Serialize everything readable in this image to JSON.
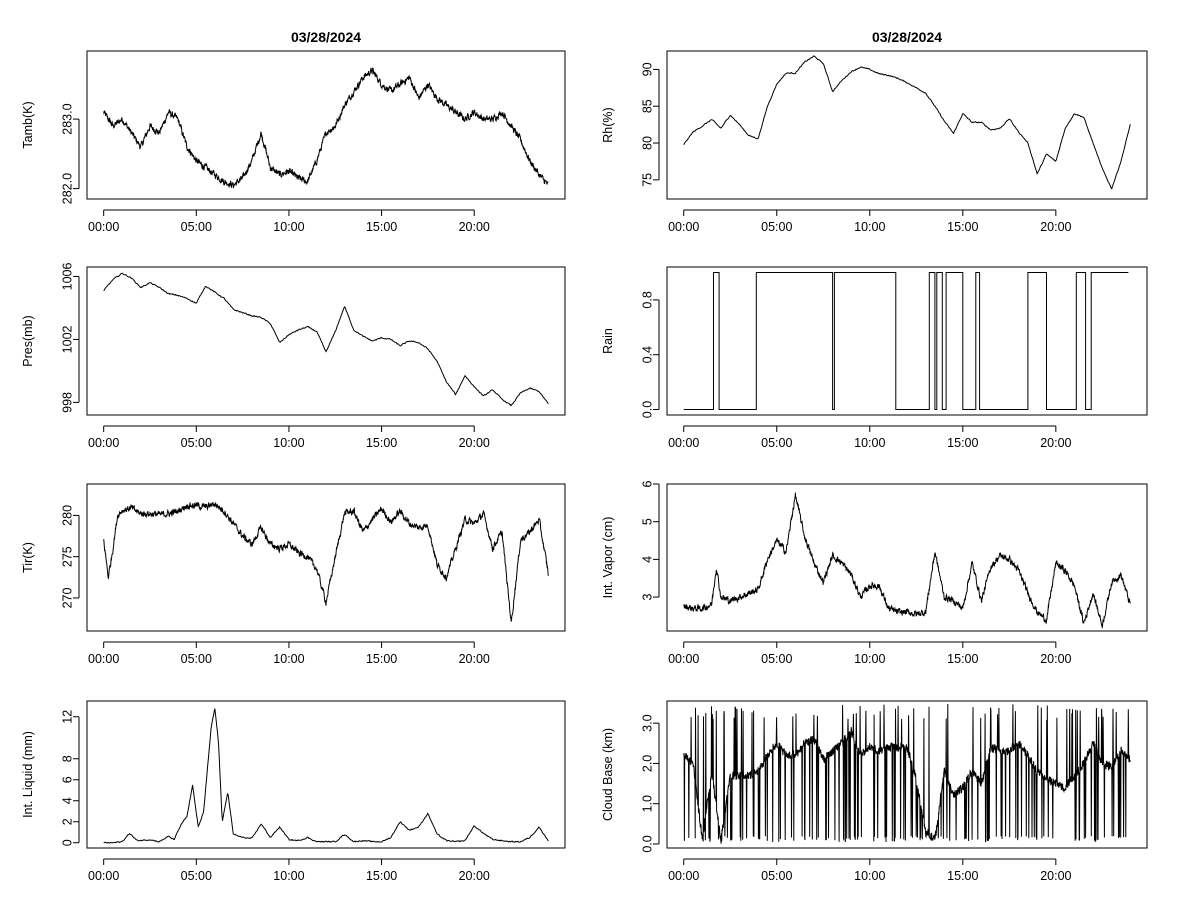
{
  "colors": {
    "background": "#ffffff",
    "line": "#000000",
    "axis": "#000000"
  },
  "figure": {
    "layout": "4 rows x 2 columns of time-series panels"
  },
  "chart_data": [
    {
      "type": "line",
      "title": "03/28/2024",
      "xlabel": "",
      "ylabel": "Tamb(K)",
      "xlim": [
        0,
        24
      ],
      "ylim": [
        281.85,
        283.98
      ],
      "x_ticks": [
        0,
        5,
        10,
        15,
        20
      ],
      "x_tick_labels": [
        "00:00",
        "05:00",
        "10:00",
        "15:00",
        "20:00"
      ],
      "y_ticks": [
        282.0,
        283.0
      ],
      "y_tick_labels": [
        "282.0",
        "283.0"
      ],
      "grid": false,
      "legend": "none",
      "series": [
        {
          "style": "noisy",
          "x": [
            0,
            0.5,
            1,
            1.5,
            2,
            2.5,
            3,
            3.5,
            4,
            4.5,
            5,
            5.5,
            6,
            6.5,
            7,
            7.5,
            8,
            8.5,
            9,
            9.5,
            10,
            10.5,
            11,
            11.5,
            12,
            12.5,
            13,
            13.5,
            14,
            14.5,
            15,
            15.5,
            16,
            16.5,
            17,
            17.5,
            18,
            18.5,
            19,
            19.5,
            20,
            20.5,
            21,
            21.5,
            22,
            22.5,
            23,
            23.5,
            24
          ],
          "y": [
            283.1,
            282.9,
            283.0,
            282.8,
            282.6,
            282.9,
            282.8,
            283.1,
            283.0,
            282.6,
            282.4,
            282.3,
            282.2,
            282.1,
            282.05,
            282.15,
            282.4,
            282.8,
            282.3,
            282.2,
            282.25,
            282.15,
            282.1,
            282.4,
            282.8,
            282.9,
            283.2,
            283.4,
            283.6,
            283.7,
            283.5,
            283.4,
            283.5,
            283.6,
            283.3,
            283.5,
            283.3,
            283.2,
            283.1,
            283.0,
            283.1,
            283.0,
            283.0,
            283.1,
            282.9,
            282.7,
            282.4,
            282.2,
            282.05
          ]
        }
      ]
    },
    {
      "type": "line",
      "title": "03/28/2024",
      "xlabel": "",
      "ylabel": "Rh(%)",
      "xlim": [
        0,
        24
      ],
      "ylim": [
        72.4,
        92.5
      ],
      "x_ticks": [
        0,
        5,
        10,
        15,
        20
      ],
      "x_tick_labels": [
        "00:00",
        "05:00",
        "10:00",
        "15:00",
        "20:00"
      ],
      "y_ticks": [
        75,
        80,
        85,
        90
      ],
      "y_tick_labels": [
        "75",
        "80",
        "85",
        "90"
      ],
      "grid": false,
      "legend": "none",
      "series": [
        {
          "style": "smooth",
          "x": [
            0,
            0.5,
            1,
            1.5,
            2,
            2.5,
            3,
            3.5,
            4,
            4.5,
            5,
            5.5,
            6,
            6.5,
            7,
            7.5,
            8,
            8.5,
            9,
            9.5,
            10,
            10.5,
            11,
            11.5,
            12,
            12.5,
            13,
            13.5,
            14,
            14.5,
            15,
            15.5,
            16,
            16.5,
            17,
            17.5,
            18,
            18.5,
            19,
            19.5,
            20,
            20.5,
            21,
            21.5,
            22,
            22.5,
            23,
            23.5,
            24
          ],
          "y": [
            79.8,
            81.5,
            82.3,
            83.2,
            82.0,
            83.8,
            82.5,
            81.0,
            80.6,
            85.0,
            88.0,
            89.5,
            89.5,
            91.0,
            91.8,
            90.8,
            87.0,
            88.5,
            89.7,
            90.3,
            90.0,
            89.4,
            89.2,
            88.8,
            88.2,
            87.5,
            86.8,
            85.0,
            83.0,
            81.3,
            84.0,
            82.8,
            82.8,
            81.8,
            82.0,
            83.3,
            81.5,
            80.0,
            75.8,
            78.5,
            77.5,
            82.0,
            84.0,
            83.5,
            80.0,
            76.5,
            73.8,
            77.5,
            82.5
          ]
        }
      ]
    },
    {
      "type": "line",
      "title": "",
      "xlabel": "",
      "ylabel": "Pres(mb)",
      "xlim": [
        0,
        24
      ],
      "ylim": [
        997.2,
        1006.6
      ],
      "x_ticks": [
        0,
        5,
        10,
        15,
        20
      ],
      "x_tick_labels": [
        "00:00",
        "05:00",
        "10:00",
        "15:00",
        "20:00"
      ],
      "y_ticks": [
        998,
        1002,
        1006
      ],
      "y_tick_labels": [
        "998",
        "1002",
        "1006"
      ],
      "grid": false,
      "legend": "none",
      "series": [
        {
          "style": "smooth",
          "x": [
            0,
            0.5,
            1,
            1.5,
            2,
            2.5,
            3,
            3.5,
            4,
            4.5,
            5,
            5.5,
            6,
            6.5,
            7,
            7.5,
            8,
            8.5,
            9,
            9.5,
            10,
            10.5,
            11,
            11.5,
            12,
            12.5,
            13,
            13.5,
            14,
            14.5,
            15,
            15.5,
            16,
            16.5,
            17,
            17.5,
            18,
            18.5,
            19,
            19.5,
            20,
            20.5,
            21,
            21.5,
            22,
            22.5,
            23,
            23.5,
            24
          ],
          "y": [
            1005.1,
            1005.8,
            1006.2,
            1005.9,
            1005.3,
            1005.6,
            1005.3,
            1004.9,
            1004.8,
            1004.6,
            1004.3,
            1005.4,
            1005.0,
            1004.6,
            1003.9,
            1003.7,
            1003.5,
            1003.4,
            1003.0,
            1001.8,
            1002.3,
            1002.6,
            1002.8,
            1002.5,
            1001.2,
            1002.5,
            1004.1,
            1002.6,
            1002.2,
            1001.9,
            1002.1,
            1002.0,
            1001.6,
            1001.9,
            1001.8,
            1001.4,
            1000.6,
            999.3,
            998.5,
            999.7,
            999.0,
            998.4,
            998.8,
            998.2,
            997.8,
            998.6,
            998.9,
            998.7,
            997.9
          ]
        }
      ]
    },
    {
      "type": "line",
      "title": "",
      "xlabel": "",
      "ylabel": "Rain",
      "xlim": [
        0,
        24
      ],
      "ylim": [
        -0.04,
        1.04
      ],
      "x_ticks": [
        0,
        5,
        10,
        15,
        20
      ],
      "x_tick_labels": [
        "00:00",
        "05:00",
        "10:00",
        "15:00",
        "20:00"
      ],
      "y_ticks": [
        0.0,
        0.4,
        0.8
      ],
      "y_tick_labels": [
        "0.0",
        "0.4",
        "0.8"
      ],
      "grid": false,
      "legend": "none",
      "series": [
        {
          "style": "step",
          "x": [
            0,
            1.6,
            1.6,
            1.9,
            1.9,
            3.9,
            3.9,
            8.0,
            8.0,
            8.1,
            8.1,
            11.4,
            11.4,
            13.2,
            13.2,
            13.5,
            13.5,
            13.6,
            13.6,
            13.9,
            13.9,
            14.1,
            14.1,
            15.0,
            15.0,
            15.7,
            15.7,
            15.9,
            15.9,
            18.5,
            18.5,
            19.5,
            19.5,
            21.1,
            21.1,
            21.6,
            21.6,
            21.9,
            21.9,
            22.6,
            22.6,
            23.9
          ],
          "y": [
            0,
            0,
            1,
            1,
            0,
            0,
            1,
            1,
            0,
            0,
            1,
            1,
            0,
            0,
            1,
            1,
            0,
            0,
            1,
            1,
            0,
            0,
            1,
            1,
            0,
            0,
            1,
            1,
            0,
            0,
            1,
            1,
            0,
            0,
            1,
            1,
            0,
            0,
            1,
            1,
            1,
            1
          ]
        }
      ]
    },
    {
      "type": "line",
      "title": "",
      "xlabel": "",
      "ylabel": "Tir(K)",
      "xlim": [
        0,
        24
      ],
      "ylim": [
        266,
        283.8
      ],
      "x_ticks": [
        0,
        5,
        10,
        15,
        20
      ],
      "x_tick_labels": [
        "00:00",
        "05:00",
        "10:00",
        "15:00",
        "20:00"
      ],
      "y_ticks": [
        270,
        275,
        280
      ],
      "y_tick_labels": [
        "270",
        "275",
        "280"
      ],
      "grid": false,
      "legend": "none",
      "series": [
        {
          "style": "noisy",
          "x": [
            0,
            0.25,
            0.5,
            0.75,
            1,
            1.5,
            2,
            2.5,
            3,
            3.5,
            4,
            4.5,
            5,
            5.5,
            6,
            6.5,
            7,
            7.5,
            8,
            8.5,
            9,
            9.5,
            10,
            10.5,
            11,
            11.5,
            12,
            12.5,
            13,
            13.5,
            14,
            14.5,
            15,
            15.5,
            16,
            16.5,
            17,
            17.5,
            18,
            18.5,
            19,
            19.5,
            20,
            20.5,
            21,
            21.5,
            22,
            22.5,
            23,
            23.5,
            24
          ],
          "y": [
            277,
            272.5,
            276,
            280,
            280.6,
            280.9,
            280.2,
            280.2,
            280.1,
            280.2,
            280.5,
            281.2,
            281.2,
            281.0,
            281.4,
            280.5,
            279.0,
            277.5,
            276.5,
            278.5,
            276.5,
            276.0,
            276.5,
            275.5,
            275.0,
            273.5,
            269.5,
            275.0,
            280.3,
            280.5,
            278.0,
            279.5,
            280.8,
            279.2,
            280.5,
            279.0,
            278.5,
            278.8,
            274.0,
            272.5,
            276.0,
            279.5,
            279.0,
            280.2,
            276.0,
            278.0,
            267.0,
            277.0,
            278.0,
            279.5,
            273.0
          ]
        }
      ]
    },
    {
      "type": "line",
      "title": "",
      "xlabel": "",
      "ylabel": "Int. Vapor (cm)",
      "xlim": [
        0,
        24
      ],
      "ylim": [
        2.1,
        6.0
      ],
      "x_ticks": [
        0,
        5,
        10,
        15,
        20
      ],
      "x_tick_labels": [
        "00:00",
        "05:00",
        "10:00",
        "15:00",
        "20:00"
      ],
      "y_ticks": [
        3,
        4,
        5,
        6
      ],
      "y_tick_labels": [
        "3",
        "4",
        "5",
        "6"
      ],
      "grid": false,
      "legend": "none",
      "series": [
        {
          "style": "noisy",
          "x": [
            0,
            0.5,
            1,
            1.5,
            1.75,
            2,
            2.5,
            3,
            3.5,
            4,
            4.5,
            5,
            5.5,
            6,
            6.5,
            7,
            7.5,
            8,
            8.5,
            9,
            9.5,
            10,
            10.5,
            11,
            11.5,
            12,
            12.5,
            13,
            13.5,
            14,
            14.5,
            15,
            15.5,
            16,
            16.5,
            17,
            17.5,
            18,
            18.5,
            19,
            19.5,
            20,
            20.5,
            21,
            21.5,
            22,
            22.5,
            23,
            23.5,
            24
          ],
          "y": [
            2.75,
            2.7,
            2.7,
            2.8,
            3.8,
            3.0,
            2.9,
            3.0,
            3.1,
            3.2,
            4.0,
            4.5,
            4.2,
            5.7,
            4.6,
            3.9,
            3.4,
            4.1,
            3.9,
            3.6,
            3.0,
            3.3,
            3.3,
            2.7,
            2.6,
            2.6,
            2.55,
            2.6,
            4.2,
            3.0,
            2.9,
            2.7,
            3.9,
            2.9,
            3.8,
            4.1,
            4.0,
            3.7,
            3.1,
            2.6,
            2.4,
            3.9,
            3.7,
            3.3,
            2.3,
            3.1,
            2.25,
            3.4,
            3.6,
            2.8
          ]
        }
      ]
    },
    {
      "type": "line",
      "title": "",
      "xlabel": "",
      "ylabel": "Int. Liquid (mm)",
      "xlim": [
        0,
        24
      ],
      "ylim": [
        -0.5,
        13.5
      ],
      "x_ticks": [
        0,
        5,
        10,
        15,
        20
      ],
      "x_tick_labels": [
        "00:00",
        "05:00",
        "10:00",
        "15:00",
        "20:00"
      ],
      "y_ticks": [
        0,
        2,
        4,
        6,
        8,
        12
      ],
      "y_tick_labels": [
        "0",
        "2",
        "4",
        "6",
        "8",
        "12"
      ],
      "grid": false,
      "legend": "none",
      "series": [
        {
          "style": "smooth",
          "x": [
            0,
            0.5,
            1,
            1.4,
            1.8,
            2.5,
            3,
            3.5,
            3.8,
            4.2,
            4.5,
            4.8,
            5.1,
            5.4,
            5.8,
            6,
            6.2,
            6.4,
            6.7,
            7,
            7.5,
            8,
            8.5,
            9,
            9.5,
            10,
            10.5,
            11,
            11.5,
            12,
            12.5,
            13,
            13.5,
            14,
            14.5,
            15,
            15.5,
            16,
            16.5,
            17,
            17.5,
            18,
            18.5,
            19,
            19.5,
            20,
            20.5,
            21,
            21.5,
            22,
            22.5,
            23,
            23.5,
            24
          ],
          "y": [
            0,
            0,
            0.1,
            0.9,
            0.2,
            0.3,
            0.1,
            0.6,
            0.3,
            1.8,
            2.5,
            5.5,
            1.5,
            3.0,
            11.0,
            12.8,
            9.5,
            2.0,
            4.8,
            0.8,
            0.5,
            0.4,
            1.8,
            0.5,
            1.5,
            0.3,
            0.2,
            0.5,
            0.1,
            0.1,
            0.1,
            0.8,
            0.1,
            0.2,
            0.1,
            0.1,
            0.5,
            2.0,
            1.2,
            1.5,
            2.8,
            0.8,
            0.2,
            0.1,
            0.2,
            1.6,
            0.9,
            0.3,
            0.2,
            0.1,
            0.1,
            0.5,
            1.5,
            0.2
          ]
        }
      ]
    },
    {
      "type": "line",
      "title": "",
      "xlabel": "",
      "ylabel": "Cloud Base (km)",
      "xlim": [
        0,
        24
      ],
      "ylim": [
        -0.1,
        3.55
      ],
      "x_ticks": [
        0,
        5,
        10,
        15,
        20
      ],
      "x_tick_labels": [
        "00:00",
        "05:00",
        "10:00",
        "15:00",
        "20:00"
      ],
      "y_ticks": [
        0.0,
        1.0,
        2.0,
        3.0
      ],
      "y_tick_labels": [
        "0.0",
        "1.0",
        "2.0",
        "3.0"
      ],
      "grid": false,
      "legend": "none",
      "series": [
        {
          "style": "spiky",
          "x": [
            0,
            0.5,
            1,
            1.5,
            2,
            2.5,
            3,
            3.5,
            4,
            4.5,
            5,
            5.5,
            6,
            6.5,
            7,
            7.5,
            8,
            8.5,
            9,
            9.5,
            10,
            10.5,
            11,
            11.5,
            12,
            12.5,
            13,
            13.5,
            14,
            14.5,
            15,
            15.5,
            16,
            16.5,
            17,
            17.5,
            18,
            18.5,
            19,
            19.5,
            20,
            20.5,
            21,
            21.5,
            22,
            22.5,
            23,
            23.5,
            24
          ],
          "y": [
            2.2,
            2.0,
            0.1,
            1.8,
            0.1,
            1.7,
            1.7,
            1.7,
            1.8,
            2.2,
            2.5,
            2.2,
            2.2,
            2.5,
            2.6,
            2.1,
            2.3,
            2.5,
            2.8,
            2.2,
            2.4,
            2.3,
            2.4,
            2.4,
            2.4,
            1.6,
            0.3,
            0.1,
            1.8,
            1.2,
            1.4,
            1.8,
            1.5,
            2.4,
            2.3,
            2.3,
            2.5,
            2.2,
            1.8,
            1.6,
            1.5,
            1.4,
            1.7,
            2.0,
            2.5,
            2.0,
            1.9,
            2.3,
            2.1
          ],
          "spikes": "frequent drops to ~0.0 km and rises to ~3.5 km"
        }
      ]
    }
  ]
}
